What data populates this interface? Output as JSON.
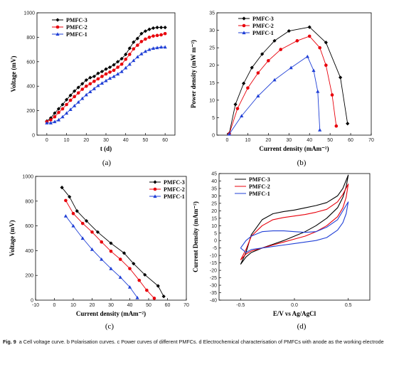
{
  "colors": {
    "PMFC-3": "#000000",
    "PMFC-2": "#e8000b",
    "PMFC-1": "#1f3fd6"
  },
  "caption": {
    "fig": "Fig. 9",
    "text": "a Cell voltage curve. b Polarisation curves. c Power curves of different PMFCs. d Electrochemical characterisation of PMFCs with anode as the working electrode"
  },
  "chart_data": [
    {
      "id": "a",
      "panel_label": "(a)",
      "type": "line",
      "xlabel": "t (d)",
      "ylabel": "Voltage (mV)",
      "xlim": [
        -5,
        65
      ],
      "ylim": [
        0,
        1000
      ],
      "xticks": [
        0,
        10,
        20,
        30,
        40,
        50,
        60
      ],
      "yticks": [
        0,
        200,
        400,
        600,
        800,
        1000
      ],
      "legend_position": "top-left",
      "series": [
        {
          "name": "PMFC-3",
          "marker": "diamond",
          "x": [
            0,
            2,
            4,
            6,
            8,
            10,
            12,
            14,
            16,
            18,
            20,
            22,
            24,
            26,
            28,
            30,
            32,
            34,
            36,
            38,
            40,
            42,
            44,
            46,
            48,
            50,
            52,
            54,
            56,
            58,
            60
          ],
          "y": [
            115,
            140,
            180,
            215,
            250,
            290,
            325,
            360,
            390,
            420,
            450,
            470,
            480,
            505,
            520,
            540,
            555,
            575,
            600,
            625,
            660,
            710,
            760,
            790,
            830,
            850,
            865,
            875,
            880,
            880,
            880
          ]
        },
        {
          "name": "PMFC-2",
          "marker": "circle",
          "x": [
            0,
            2,
            4,
            6,
            8,
            10,
            12,
            14,
            16,
            18,
            20,
            22,
            24,
            26,
            28,
            30,
            32,
            34,
            36,
            38,
            40,
            42,
            44,
            46,
            48,
            50,
            52,
            54,
            56,
            58,
            60
          ],
          "y": [
            110,
            125,
            150,
            185,
            215,
            250,
            285,
            315,
            345,
            375,
            400,
            420,
            440,
            460,
            480,
            500,
            515,
            530,
            555,
            580,
            620,
            660,
            705,
            735,
            765,
            785,
            800,
            810,
            815,
            820,
            830
          ]
        },
        {
          "name": "PMFC-1",
          "marker": "triangle",
          "x": [
            0,
            2,
            4,
            6,
            8,
            10,
            12,
            14,
            16,
            18,
            20,
            22,
            24,
            26,
            28,
            30,
            32,
            34,
            36,
            38,
            40,
            42,
            44,
            46,
            48,
            50,
            52,
            54,
            56,
            58,
            60
          ],
          "y": [
            100,
            100,
            110,
            125,
            150,
            180,
            210,
            240,
            270,
            300,
            330,
            355,
            380,
            405,
            425,
            445,
            465,
            480,
            500,
            520,
            550,
            580,
            610,
            640,
            665,
            685,
            700,
            710,
            715,
            720,
            720
          ]
        }
      ]
    },
    {
      "id": "b",
      "panel_label": "(b)",
      "type": "line",
      "xlabel": "Current density (mAm⁻²)",
      "ylabel": "Power density (mW m⁻²)",
      "xlim": [
        -5,
        70
      ],
      "ylim": [
        0,
        35
      ],
      "xticks": [
        0,
        10,
        20,
        30,
        40,
        50,
        60,
        70
      ],
      "yticks": [
        0,
        5,
        10,
        15,
        20,
        25,
        30,
        35
      ],
      "legend_position": "top-left",
      "series": [
        {
          "name": "PMFC-3",
          "marker": "diamond",
          "x": [
            1,
            4,
            8,
            12,
            17,
            23,
            30,
            40,
            48,
            55,
            58.5
          ],
          "y": [
            0.5,
            8.8,
            14.8,
            19.3,
            23.2,
            27,
            29.8,
            30.9,
            26.5,
            16.5,
            3.3
          ]
        },
        {
          "name": "PMFC-2",
          "marker": "circle",
          "x": [
            1,
            5,
            10,
            15,
            20,
            26,
            34,
            40,
            45,
            48,
            51,
            53
          ],
          "y": [
            0.4,
            7.6,
            13.5,
            17.8,
            21.3,
            24.5,
            27,
            28.3,
            25,
            20,
            11.5,
            2.6
          ]
        },
        {
          "name": "PMFC-1",
          "marker": "triangle",
          "x": [
            1,
            7,
            15,
            23,
            31,
            39,
            42,
            44,
            45
          ],
          "y": [
            0.3,
            5.5,
            11.2,
            15.8,
            19.3,
            22.5,
            18.5,
            12.5,
            1.5
          ]
        }
      ]
    },
    {
      "id": "c",
      "panel_label": "(c)",
      "type": "line",
      "xlabel": "Current density (mAm⁻²)",
      "ylabel": "Voltage (mV)",
      "xlim": [
        -10,
        70
      ],
      "ylim": [
        0,
        1000
      ],
      "xticks": [
        -10,
        0,
        10,
        20,
        30,
        40,
        50,
        60,
        70
      ],
      "yticks": [
        0,
        200,
        400,
        600,
        800,
        1000
      ],
      "legend_position": "top-right",
      "series": [
        {
          "name": "PMFC-3",
          "marker": "diamond",
          "x": [
            4,
            8,
            12,
            17,
            23,
            30,
            37,
            42,
            48,
            55,
            58
          ],
          "y": [
            910,
            835,
            720,
            640,
            550,
            460,
            380,
            295,
            205,
            115,
            30
          ]
        },
        {
          "name": "PMFC-2",
          "marker": "circle",
          "x": [
            6,
            10,
            15,
            20,
            25,
            30,
            35,
            40,
            45,
            49,
            53
          ],
          "y": [
            805,
            700,
            620,
            550,
            470,
            395,
            330,
            255,
            160,
            80,
            15
          ]
        },
        {
          "name": "PMFC-1",
          "marker": "triangle",
          "x": [
            6,
            10,
            15,
            20,
            25,
            30,
            35,
            40,
            44
          ],
          "y": [
            680,
            600,
            500,
            410,
            330,
            255,
            185,
            105,
            20
          ]
        }
      ]
    },
    {
      "id": "d",
      "panel_label": "(d)",
      "type": "line",
      "xlabel": "E/V vs Ag/AgCl",
      "ylabel": "Current Density (mAm⁻²)",
      "xlim": [
        -0.7,
        0.7
      ],
      "ylim": [
        -40,
        45
      ],
      "xticks": [
        -0.5,
        0.0,
        0.5
      ],
      "yticks": [
        -40,
        -35,
        -30,
        -25,
        -20,
        -15,
        -10,
        -5,
        0,
        5,
        10,
        15,
        20,
        25,
        30,
        35,
        40,
        45
      ],
      "legend_position": "top-left",
      "series": [
        {
          "name": "PMFC-3",
          "marker": "none",
          "x": [
            -0.5,
            -0.45,
            -0.4,
            -0.3,
            -0.2,
            -0.1,
            0.0,
            0.1,
            0.2,
            0.3,
            0.4,
            0.45,
            0.5,
            0.48,
            0.45,
            0.4,
            0.3,
            0.2,
            0.1,
            0.0,
            -0.1,
            -0.2,
            -0.3,
            -0.4,
            -0.45,
            -0.5
          ],
          "y": [
            -16,
            -8,
            4,
            14,
            18,
            19.5,
            20.5,
            22,
            23.5,
            25.5,
            30,
            35,
            44,
            36,
            29,
            22,
            15,
            10,
            6,
            3,
            0,
            -2.5,
            -5,
            -8,
            -11,
            -16
          ]
        },
        {
          "name": "PMFC-2",
          "marker": "none",
          "x": [
            -0.5,
            -0.45,
            -0.4,
            -0.3,
            -0.2,
            -0.1,
            0.0,
            0.1,
            0.2,
            0.3,
            0.4,
            0.45,
            0.5,
            0.48,
            0.45,
            0.4,
            0.3,
            0.2,
            0.1,
            0.0,
            -0.1,
            -0.2,
            -0.3,
            -0.4,
            -0.45,
            -0.5
          ],
          "y": [
            -13,
            -6,
            3,
            10,
            14,
            15.5,
            16.5,
            17.5,
            19,
            21,
            26,
            31,
            38,
            29,
            22,
            16,
            10,
            6,
            3,
            1,
            -1,
            -3,
            -5,
            -7,
            -9,
            -13
          ]
        },
        {
          "name": "PMFC-1",
          "marker": "none",
          "x": [
            -0.5,
            -0.45,
            -0.4,
            -0.3,
            -0.2,
            -0.1,
            0.0,
            0.1,
            0.2,
            0.3,
            0.4,
            0.45,
            0.5,
            0.48,
            0.45,
            0.4,
            0.3,
            0.2,
            0.1,
            0.0,
            -0.1,
            -0.2,
            -0.3,
            -0.4,
            -0.45,
            -0.5
          ],
          "y": [
            -5,
            0,
            3,
            6,
            6.5,
            6.5,
            6,
            5.5,
            6,
            9,
            14,
            20,
            26,
            18,
            12,
            7,
            2,
            0,
            -1,
            -2,
            -3,
            -4,
            -5,
            -6,
            -8,
            -5
          ]
        }
      ]
    }
  ]
}
